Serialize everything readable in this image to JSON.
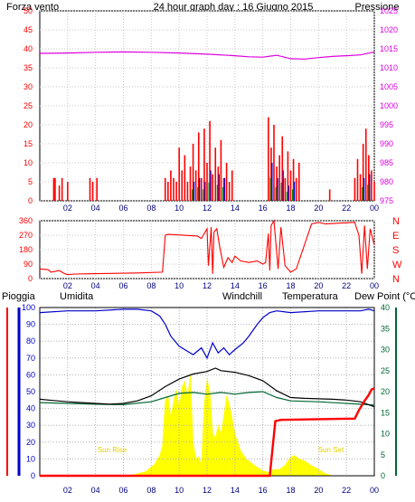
{
  "header": {
    "wind_label": "Forza vento",
    "title": "24 hour graph day : 16 Giugno 2015",
    "pressure_label": "Pressione"
  },
  "colors": {
    "wind": "#ff0000",
    "pressure": "#dd00dd",
    "gust": "#0000cc",
    "green": "#008000",
    "title": "#000080",
    "rain": "#ff0000",
    "humidity": "#0000cc",
    "windchill": "#ff8000",
    "temperature": "#000000",
    "dewpoint": "#006633",
    "solar": "#ffff00",
    "label_rain": "#ff0000",
    "label_humidity": "#0000aa",
    "label_windchill": "#ff8000",
    "label_temp": "#000000",
    "label_dew": "#006633"
  },
  "x_ticks": [
    "02",
    "04",
    "06",
    "08",
    "10",
    "12",
    "14",
    "16",
    "18",
    "20",
    "22",
    "00"
  ],
  "chart_data": [
    {
      "type": "bar",
      "id": "wind-pressure",
      "y_left": {
        "ticks": [
          0,
          5,
          10,
          15,
          20,
          25,
          30,
          35,
          40,
          45,
          50
        ],
        "range": [
          0,
          50
        ]
      },
      "y_right": {
        "ticks": [
          975,
          980,
          985,
          990,
          995,
          1000,
          1005,
          1010,
          1015,
          1020,
          1025
        ],
        "range": [
          975,
          1025
        ]
      },
      "grid": true,
      "series": [
        {
          "name": "Forza vento",
          "x": [
            1.0,
            1.1,
            1.4,
            1.6,
            2.0,
            3.6,
            3.8,
            4.1,
            9.0,
            9.2,
            9.4,
            9.6,
            9.8,
            10.0,
            10.2,
            10.4,
            10.6,
            10.8,
            11.0,
            11.2,
            11.4,
            11.6,
            11.8,
            12.0,
            12.2,
            12.4,
            12.6,
            12.8,
            13.0,
            13.2,
            13.4,
            13.6,
            13.8,
            16.4,
            16.6,
            16.8,
            17.0,
            17.2,
            17.4,
            17.6,
            17.8,
            18.0,
            18.2,
            18.4,
            18.6,
            20.8,
            22.6,
            22.8,
            23.0,
            23.2,
            23.4,
            23.6,
            23.8,
            24.0
          ],
          "values": [
            6,
            6,
            4,
            6,
            5,
            6,
            5,
            6,
            6,
            5,
            8,
            6,
            5,
            14,
            8,
            12,
            5,
            9,
            15,
            8,
            18,
            6,
            19,
            10,
            21,
            7,
            14,
            9,
            16,
            6,
            10,
            5,
            8,
            22,
            14,
            20,
            9,
            12,
            17,
            6,
            13,
            8,
            11,
            6,
            10,
            3,
            6,
            11,
            7,
            15,
            19,
            12,
            8,
            5
          ]
        },
        {
          "name": "Raffica",
          "x": [
            11.0,
            11.4,
            11.8,
            12.2,
            12.8,
            13.2,
            16.6,
            17.0,
            17.4,
            17.8,
            18.2,
            23.2,
            23.6
          ],
          "values": [
            5,
            6,
            5,
            8,
            7,
            6,
            10,
            6,
            8,
            4,
            5,
            6,
            7
          ]
        },
        {
          "name": "Pressione",
          "x": [
            0,
            2,
            4,
            6,
            8,
            10,
            12,
            14,
            15,
            16,
            17,
            18,
            19,
            20,
            21,
            22,
            23,
            24
          ],
          "values": [
            1013.8,
            1013.9,
            1014.1,
            1014.2,
            1014.1,
            1013.9,
            1013.6,
            1013.2,
            1012.9,
            1012.8,
            1013.3,
            1012.4,
            1012.3,
            1012.7,
            1013.0,
            1013.2,
            1013.4,
            1014.2
          ]
        }
      ]
    },
    {
      "type": "line",
      "id": "wind-direction",
      "y_left": {
        "ticks": [
          0,
          90,
          180,
          270,
          360
        ],
        "range": [
          0,
          360
        ]
      },
      "y_right_labels": [
        "N",
        "W",
        "S",
        "E",
        "N"
      ],
      "grid": true,
      "series": [
        {
          "name": "Direzione",
          "x": [
            0,
            0.6,
            0.8,
            1.4,
            1.8,
            2.0,
            2.5,
            3.5,
            5.0,
            7.0,
            8.8,
            9.0,
            9.2,
            11.3,
            11.6,
            12.0,
            12.1,
            12.3,
            12.4,
            12.5,
            12.7,
            12.9,
            13.2,
            13.5,
            13.8,
            14.0,
            14.4,
            15.0,
            15.6,
            16.0,
            16.2,
            16.4,
            16.5,
            16.6,
            16.8,
            17.1,
            17.3,
            17.6,
            18.0,
            18.4,
            19.5,
            20.0,
            20.5,
            21.5,
            22.6,
            22.7,
            22.9,
            23.1,
            23.3,
            23.5,
            23.7,
            24.0
          ],
          "values": [
            60,
            55,
            40,
            50,
            30,
            25,
            28,
            30,
            32,
            35,
            40,
            270,
            275,
            265,
            250,
            310,
            80,
            320,
            30,
            290,
            310,
            200,
            70,
            130,
            100,
            140,
            110,
            100,
            110,
            90,
            100,
            280,
            50,
            330,
            360,
            60,
            320,
            80,
            40,
            60,
            340,
            350,
            340,
            345,
            350,
            320,
            270,
            30,
            330,
            60,
            310,
            210
          ]
        }
      ]
    },
    {
      "type": "line",
      "id": "rain-humidity-temperature",
      "y_left": {
        "ticks": [
          0,
          10,
          20,
          30,
          40,
          50,
          60,
          70,
          80,
          90,
          100
        ],
        "range": [
          0,
          100
        ]
      },
      "y_right": {
        "ticks": [
          0,
          5,
          10,
          15,
          20,
          25,
          30,
          35,
          40
        ],
        "range": [
          0,
          40
        ]
      },
      "grid": true,
      "annotations": [
        "Sun Rise",
        "Sun Set"
      ],
      "labels": {
        "rain": "Pioggia",
        "humidity": "Umidita",
        "windchill": "Windchill",
        "temperature": "Temperatura",
        "dewpoint": "Dew Point (°C"
      },
      "series": [
        {
          "name": "Umidita",
          "x": [
            0,
            2,
            4,
            6,
            7,
            8,
            8.6,
            9.0,
            9.4,
            10,
            10.6,
            11,
            11.6,
            12,
            12.4,
            12.8,
            13.2,
            13.6,
            14,
            14.6,
            15,
            15.6,
            16,
            16.5,
            17,
            18,
            20,
            22,
            23,
            23.6,
            24
          ],
          "values": [
            97,
            98,
            98,
            99,
            99,
            98,
            95,
            90,
            83,
            77,
            74,
            72,
            76,
            70,
            79,
            73,
            76,
            72,
            75,
            79,
            83,
            90,
            94,
            97,
            98,
            97,
            98,
            98,
            98,
            99,
            98
          ]
        },
        {
          "name": "Temperatura",
          "x": [
            0,
            1,
            2,
            3,
            4,
            5,
            6,
            7,
            8,
            9,
            10,
            11,
            12,
            12.6,
            13,
            14,
            15,
            16,
            17,
            18,
            19,
            20,
            21,
            22,
            23,
            24
          ],
          "values": [
            18.2,
            17.9,
            17.6,
            17.4,
            17.2,
            17.0,
            17.2,
            17.8,
            19.0,
            21.2,
            23.0,
            24.2,
            24.8,
            25.6,
            25.0,
            24.6,
            23.8,
            22.6,
            20.2,
            18.6,
            18.4,
            18.3,
            18.2,
            18.0,
            17.6,
            16.4
          ]
        },
        {
          "name": "Dew Point",
          "x": [
            0,
            2,
            4,
            6,
            8,
            9,
            10,
            11,
            12,
            13,
            14,
            15,
            16,
            17,
            18,
            20,
            22,
            23,
            24
          ],
          "values": [
            17.4,
            17.2,
            17.0,
            16.9,
            17.6,
            18.6,
            19.6,
            19.8,
            19.4,
            19.8,
            19.4,
            19.8,
            20.0,
            18.6,
            17.8,
            17.6,
            17.2,
            17.0,
            16.8
          ]
        },
        {
          "name": "Pioggia",
          "x": [
            0,
            16.5,
            16.9,
            17.3,
            22.6,
            22.9,
            23.3,
            23.6,
            23.8,
            24.0
          ],
          "values": [
            0,
            0,
            13.0,
            13.3,
            13.6,
            15.6,
            17.8,
            19.2,
            20.5,
            20.8
          ]
        },
        {
          "name": "Solar",
          "x": [
            6.0,
            6.8,
            7.6,
            8.2,
            8.6,
            8.8,
            9.0,
            9.2,
            9.4,
            9.6,
            9.8,
            10.0,
            10.2,
            10.4,
            10.6,
            10.8,
            11.0,
            11.2,
            11.4,
            11.6,
            11.8,
            12.0,
            12.2,
            12.4,
            12.6,
            12.8,
            13.0,
            13.2,
            13.4,
            13.6,
            13.8,
            14.0,
            14.4,
            14.8,
            15.2,
            15.6,
            16.0,
            16.4,
            16.8,
            17.2,
            17.6,
            18.0,
            18.3,
            18.6,
            19.0,
            19.4,
            20.0,
            20.5,
            21.0
          ],
          "values": [
            0,
            0.3,
            1.0,
            2.6,
            4.8,
            7.0,
            17.8,
            19.0,
            14.0,
            17.5,
            20.5,
            16.0,
            21.0,
            22.5,
            18.5,
            24.0,
            8.0,
            4.0,
            4.5,
            2.5,
            17.0,
            23.0,
            20.0,
            10.0,
            9.0,
            12.0,
            10.0,
            14.0,
            19.0,
            17.0,
            13.5,
            10.0,
            6.0,
            4.0,
            3.0,
            2.0,
            1.2,
            0.8,
            1.5,
            1.5,
            2.5,
            4.5,
            4.8,
            4.0,
            3.5,
            2.6,
            1.5,
            0.5,
            0
          ]
        }
      ]
    }
  ]
}
